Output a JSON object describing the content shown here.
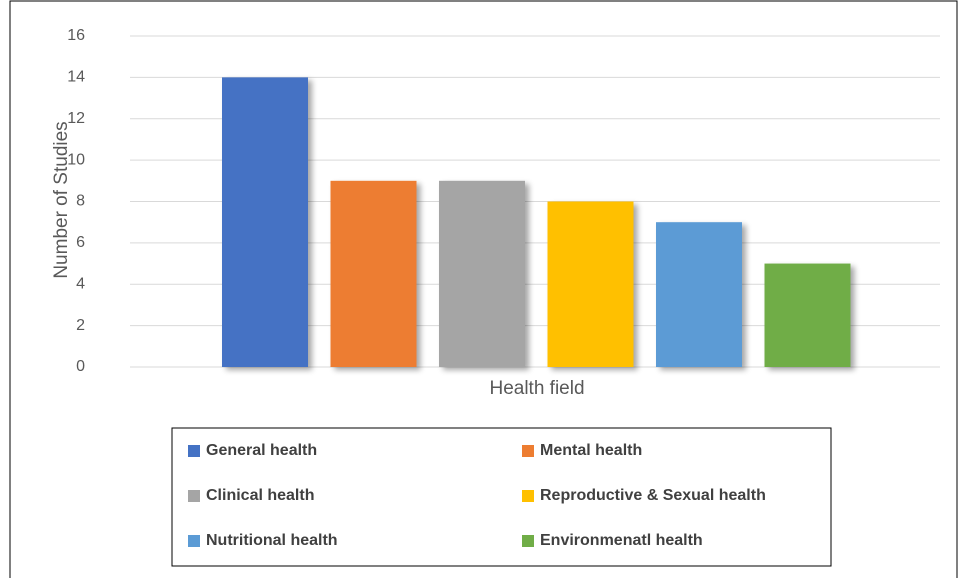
{
  "chart_data": {
    "type": "bar",
    "xlabel": "Health field",
    "ylabel": "Number of Studies",
    "series": [
      {
        "name": "General health",
        "color": "#4472c4",
        "values": [
          14
        ]
      },
      {
        "name": "Mental health",
        "color": "#ed7d31",
        "values": [
          9
        ]
      },
      {
        "name": "Clinical health",
        "color": "#a5a5a5",
        "values": [
          9
        ]
      },
      {
        "name": "Reproductive & Sexual health",
        "color": "#ffc000",
        "values": [
          8
        ]
      },
      {
        "name": "Nutritional health",
        "color": "#5b9bd5",
        "values": [
          7
        ]
      },
      {
        "name": "Environmenatl health",
        "color": "#70ad47",
        "values": [
          5
        ]
      }
    ],
    "ylim": [
      0,
      16
    ],
    "yticks": [
      0,
      2,
      4,
      6,
      8,
      10,
      12,
      14,
      16
    ],
    "grid": true,
    "legend": "bottom"
  }
}
